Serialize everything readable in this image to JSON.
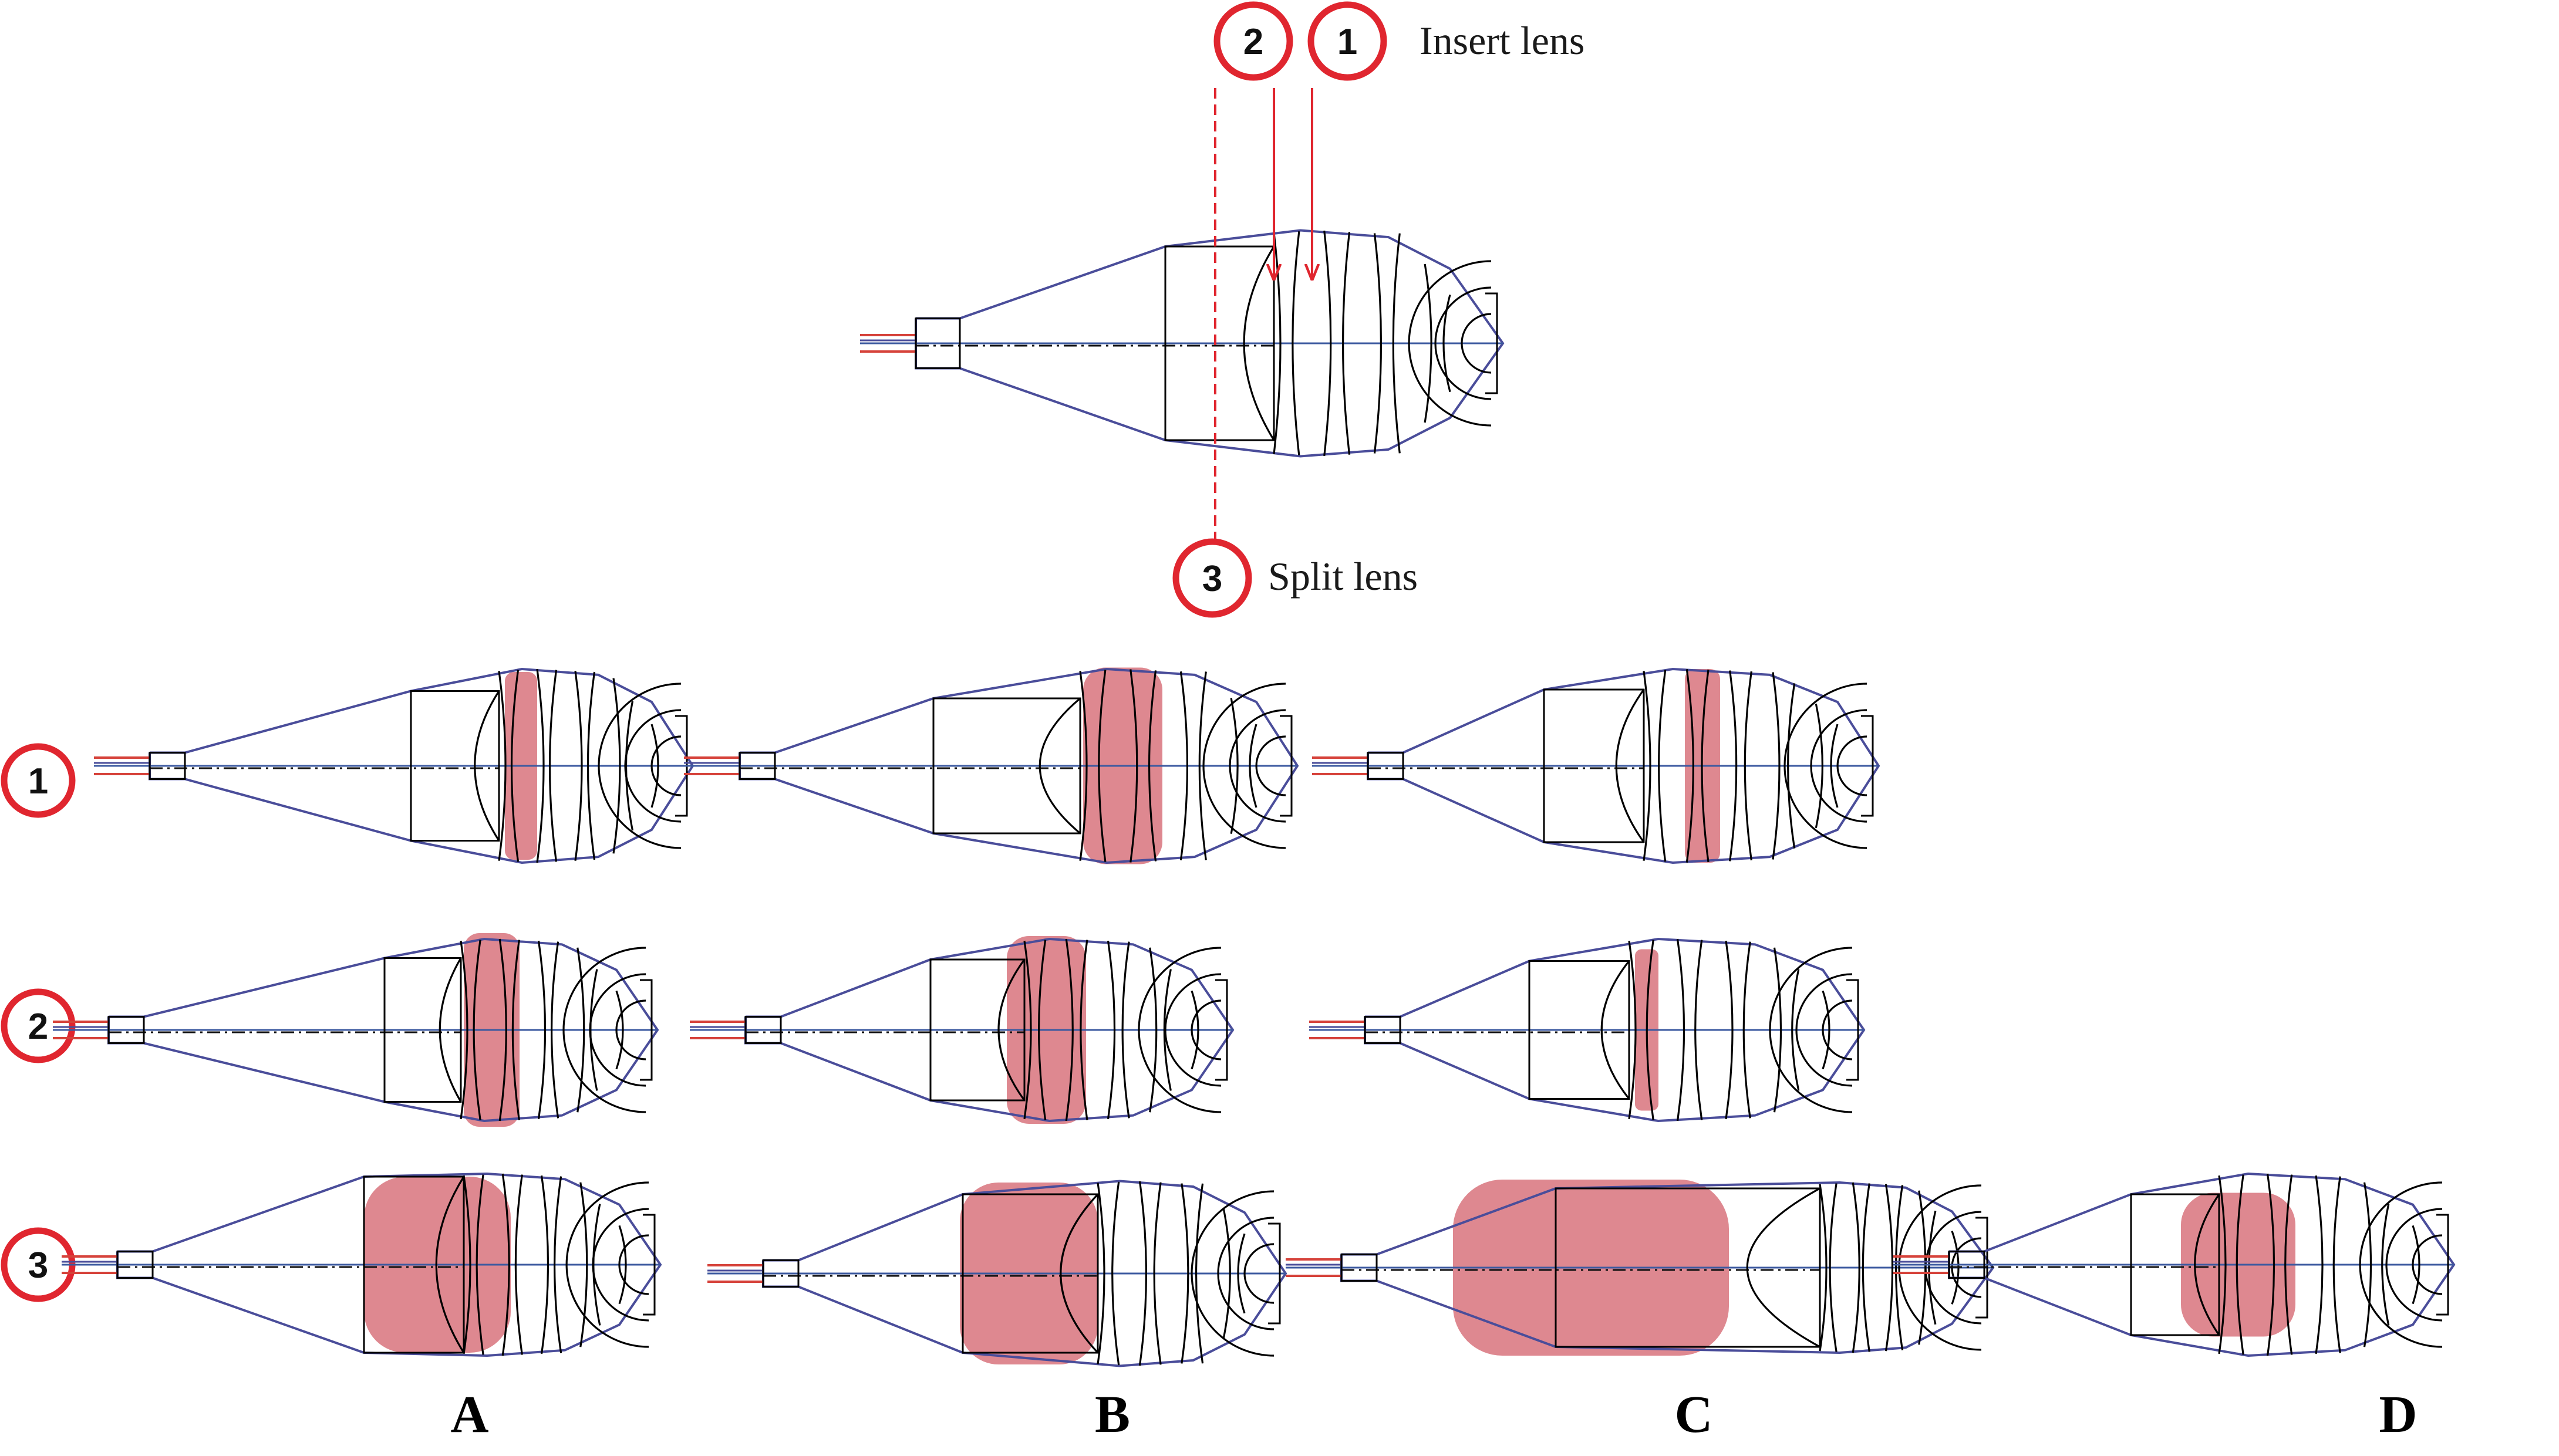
{
  "markers": {
    "insert": {
      "numbers": [
        "2",
        "1"
      ],
      "label": "Insert lens"
    },
    "split": {
      "number": "3",
      "label": "Split lens"
    }
  },
  "rows": [
    "1",
    "2",
    "3"
  ],
  "columns": [
    "A",
    "B",
    "C",
    "D"
  ],
  "colors": {
    "accent": "#e0262f",
    "highlight": "#dc828a",
    "envelope": "#4a4d9a",
    "lens": "#000000",
    "axis": "#3c5aa0",
    "ray": "#d6423a"
  }
}
